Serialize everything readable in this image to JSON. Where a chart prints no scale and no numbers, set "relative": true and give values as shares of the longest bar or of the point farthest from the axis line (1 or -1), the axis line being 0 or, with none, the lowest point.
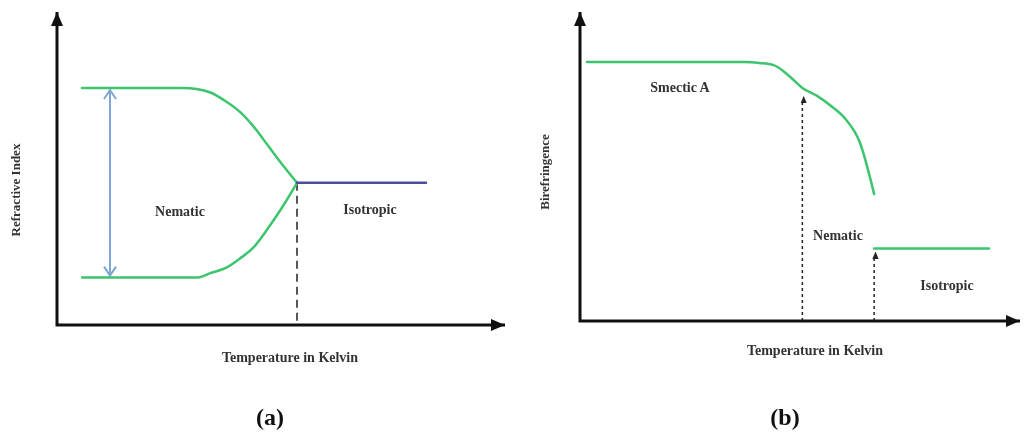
{
  "chart_data": [
    {
      "type": "line",
      "title": "(a)",
      "xlabel": "Temperature in Kelvin",
      "ylabel": "Refractive Index",
      "relative": true,
      "categories": [
        null,
        null,
        null,
        null,
        null,
        null,
        null,
        null,
        null,
        null,
        null,
        null,
        null,
        null,
        null,
        null,
        null,
        null,
        null,
        null,
        null,
        null,
        null,
        null,
        null
      ],
      "series": [
        {
          "color": "#3cc46e",
          "values": [
            1,
            1,
            1,
            1,
            1,
            1,
            1,
            1,
            0.996,
            0.98,
            0.945,
            0.9,
            0.835,
            0.755,
            0.675,
            0.6,
            null,
            null,
            null,
            null,
            null,
            null,
            null,
            null,
            null
          ]
        },
        {
          "color": "#3cc46e",
          "values": [
            0.2,
            0.2,
            0.2,
            0.2,
            0.2,
            0.2,
            0.2,
            0.2,
            0.2,
            0.22,
            0.24,
            0.28,
            0.33,
            0.41,
            0.5,
            0.6,
            null,
            null,
            null,
            null,
            null,
            null,
            null,
            null,
            null
          ]
        },
        {
          "color": "#4a4f9c",
          "values": [
            null,
            null,
            null,
            null,
            null,
            null,
            null,
            null,
            null,
            null,
            null,
            null,
            null,
            null,
            null,
            0.6,
            0.6,
            0.6,
            0.6,
            0.6,
            0.6,
            0.6,
            0.6,
            0.6,
            0.6
          ]
        }
      ],
      "annotations": [
        "Nematic",
        "Isotropic"
      ]
    },
    {
      "type": "line",
      "title": "(b)",
      "xlabel": "Temperature in Kelvin",
      "ylabel": "Birefringence",
      "relative": true,
      "categories": [
        null,
        null,
        null,
        null,
        null,
        null,
        null,
        null,
        null,
        null,
        null,
        null,
        null,
        null,
        null,
        null,
        null,
        null,
        null,
        null,
        null,
        null,
        null,
        null,
        null,
        null,
        null,
        null,
        null
      ],
      "series": [
        {
          "color": "#3cc46e",
          "values": [
            1,
            1,
            1,
            1,
            1,
            1,
            1,
            1,
            1,
            1,
            1,
            1,
            0.996,
            0.988,
            0.95,
            0.9,
            0.87,
            0.83,
            0.78,
            0.69,
            0.49,
            null,
            null,
            null,
            null,
            null,
            null,
            null,
            null
          ]
        },
        {
          "color": "#3cc46e",
          "values": [
            null,
            null,
            null,
            null,
            null,
            null,
            null,
            null,
            null,
            null,
            null,
            null,
            null,
            null,
            null,
            null,
            null,
            null,
            null,
            null,
            0.28,
            0.28,
            0.28,
            0.28,
            0.28,
            0.28,
            0.28,
            0.28,
            0.28
          ]
        }
      ],
      "annotations": [
        "Smectic A",
        "Nematic",
        "Isotropic"
      ]
    }
  ]
}
